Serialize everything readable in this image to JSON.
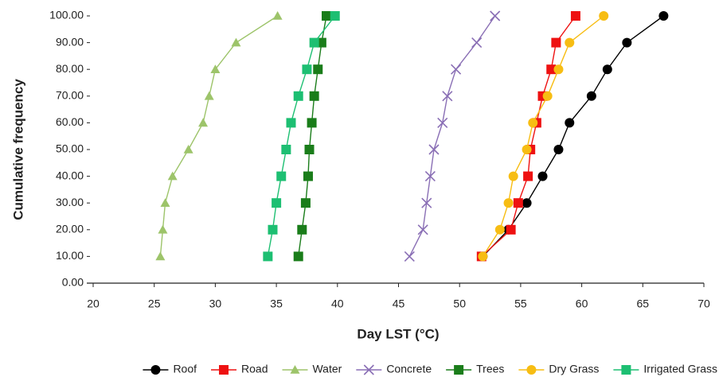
{
  "chart_data": {
    "type": "line",
    "x_label": "Day LST (°C)",
    "y_label": "Cumulative frequency",
    "xlim": [
      20,
      70
    ],
    "xticks": [
      20,
      25,
      30,
      35,
      40,
      45,
      50,
      55,
      60,
      65,
      70
    ],
    "ylim": [
      0,
      100
    ],
    "yticks": [
      {
        "value": 0,
        "label": "0.00"
      },
      {
        "value": 10,
        "label": "10.00"
      },
      {
        "value": 20,
        "label": "20.00"
      },
      {
        "value": 30,
        "label": "30.00"
      },
      {
        "value": 40,
        "label": "40.00"
      },
      {
        "value": 50,
        "label": "50.00"
      },
      {
        "value": 60,
        "label": "60.00"
      },
      {
        "value": 70,
        "label": "70.00"
      },
      {
        "value": 80,
        "label": "80.00"
      },
      {
        "value": 90,
        "label": "90.00"
      },
      {
        "value": 100,
        "label": "100.00"
      }
    ],
    "grid": false,
    "legend": "bottom",
    "series": [
      {
        "name": "Roof",
        "color": "#000000",
        "marker": "circle",
        "x": [
          51.9,
          54.0,
          55.5,
          56.8,
          58.1,
          59.0,
          60.8,
          62.1,
          63.7,
          66.7
        ],
        "values": [
          10,
          20,
          30,
          40,
          50,
          60,
          70,
          80,
          90,
          100
        ]
      },
      {
        "name": "Road",
        "color": "#ee1111",
        "marker": "square",
        "x": [
          51.8,
          54.2,
          54.8,
          55.6,
          55.8,
          56.3,
          56.8,
          57.5,
          57.9,
          59.5
        ],
        "values": [
          10,
          20,
          30,
          40,
          50,
          60,
          70,
          80,
          90,
          100
        ]
      },
      {
        "name": "Water",
        "color": "#9dc46a",
        "marker": "triangle",
        "x": [
          25.5,
          25.7,
          25.9,
          26.5,
          27.8,
          29.0,
          29.5,
          30.0,
          31.7,
          35.1
        ],
        "values": [
          10,
          20,
          30,
          40,
          50,
          60,
          70,
          80,
          90,
          100
        ]
      },
      {
        "name": "Concrete",
        "color": "#8a6fb5",
        "marker": "x",
        "x": [
          45.9,
          47.0,
          47.3,
          47.6,
          47.9,
          48.6,
          49.0,
          49.7,
          51.4,
          52.9
        ],
        "values": [
          10,
          20,
          30,
          40,
          50,
          60,
          70,
          80,
          90,
          100
        ]
      },
      {
        "name": "Trees",
        "color": "#1a7d1a",
        "marker": "square",
        "x": [
          36.8,
          37.1,
          37.4,
          37.6,
          37.7,
          37.9,
          38.1,
          38.4,
          38.7,
          39.1
        ],
        "values": [
          10,
          20,
          30,
          40,
          50,
          60,
          70,
          80,
          90,
          100
        ]
      },
      {
        "name": "Dry Grass",
        "color": "#f7bd13",
        "marker": "circle",
        "x": [
          51.9,
          53.3,
          54.0,
          54.4,
          55.5,
          56.0,
          57.2,
          58.1,
          59.0,
          61.8
        ],
        "values": [
          10,
          20,
          30,
          40,
          50,
          60,
          70,
          80,
          90,
          100
        ]
      },
      {
        "name": "Irrigated Grass",
        "color": "#1dbf72",
        "marker": "square",
        "x": [
          34.3,
          34.7,
          35.0,
          35.4,
          35.8,
          36.2,
          36.8,
          37.5,
          38.1,
          39.8
        ],
        "values": [
          10,
          20,
          30,
          40,
          50,
          60,
          70,
          80,
          90,
          100
        ]
      }
    ]
  }
}
